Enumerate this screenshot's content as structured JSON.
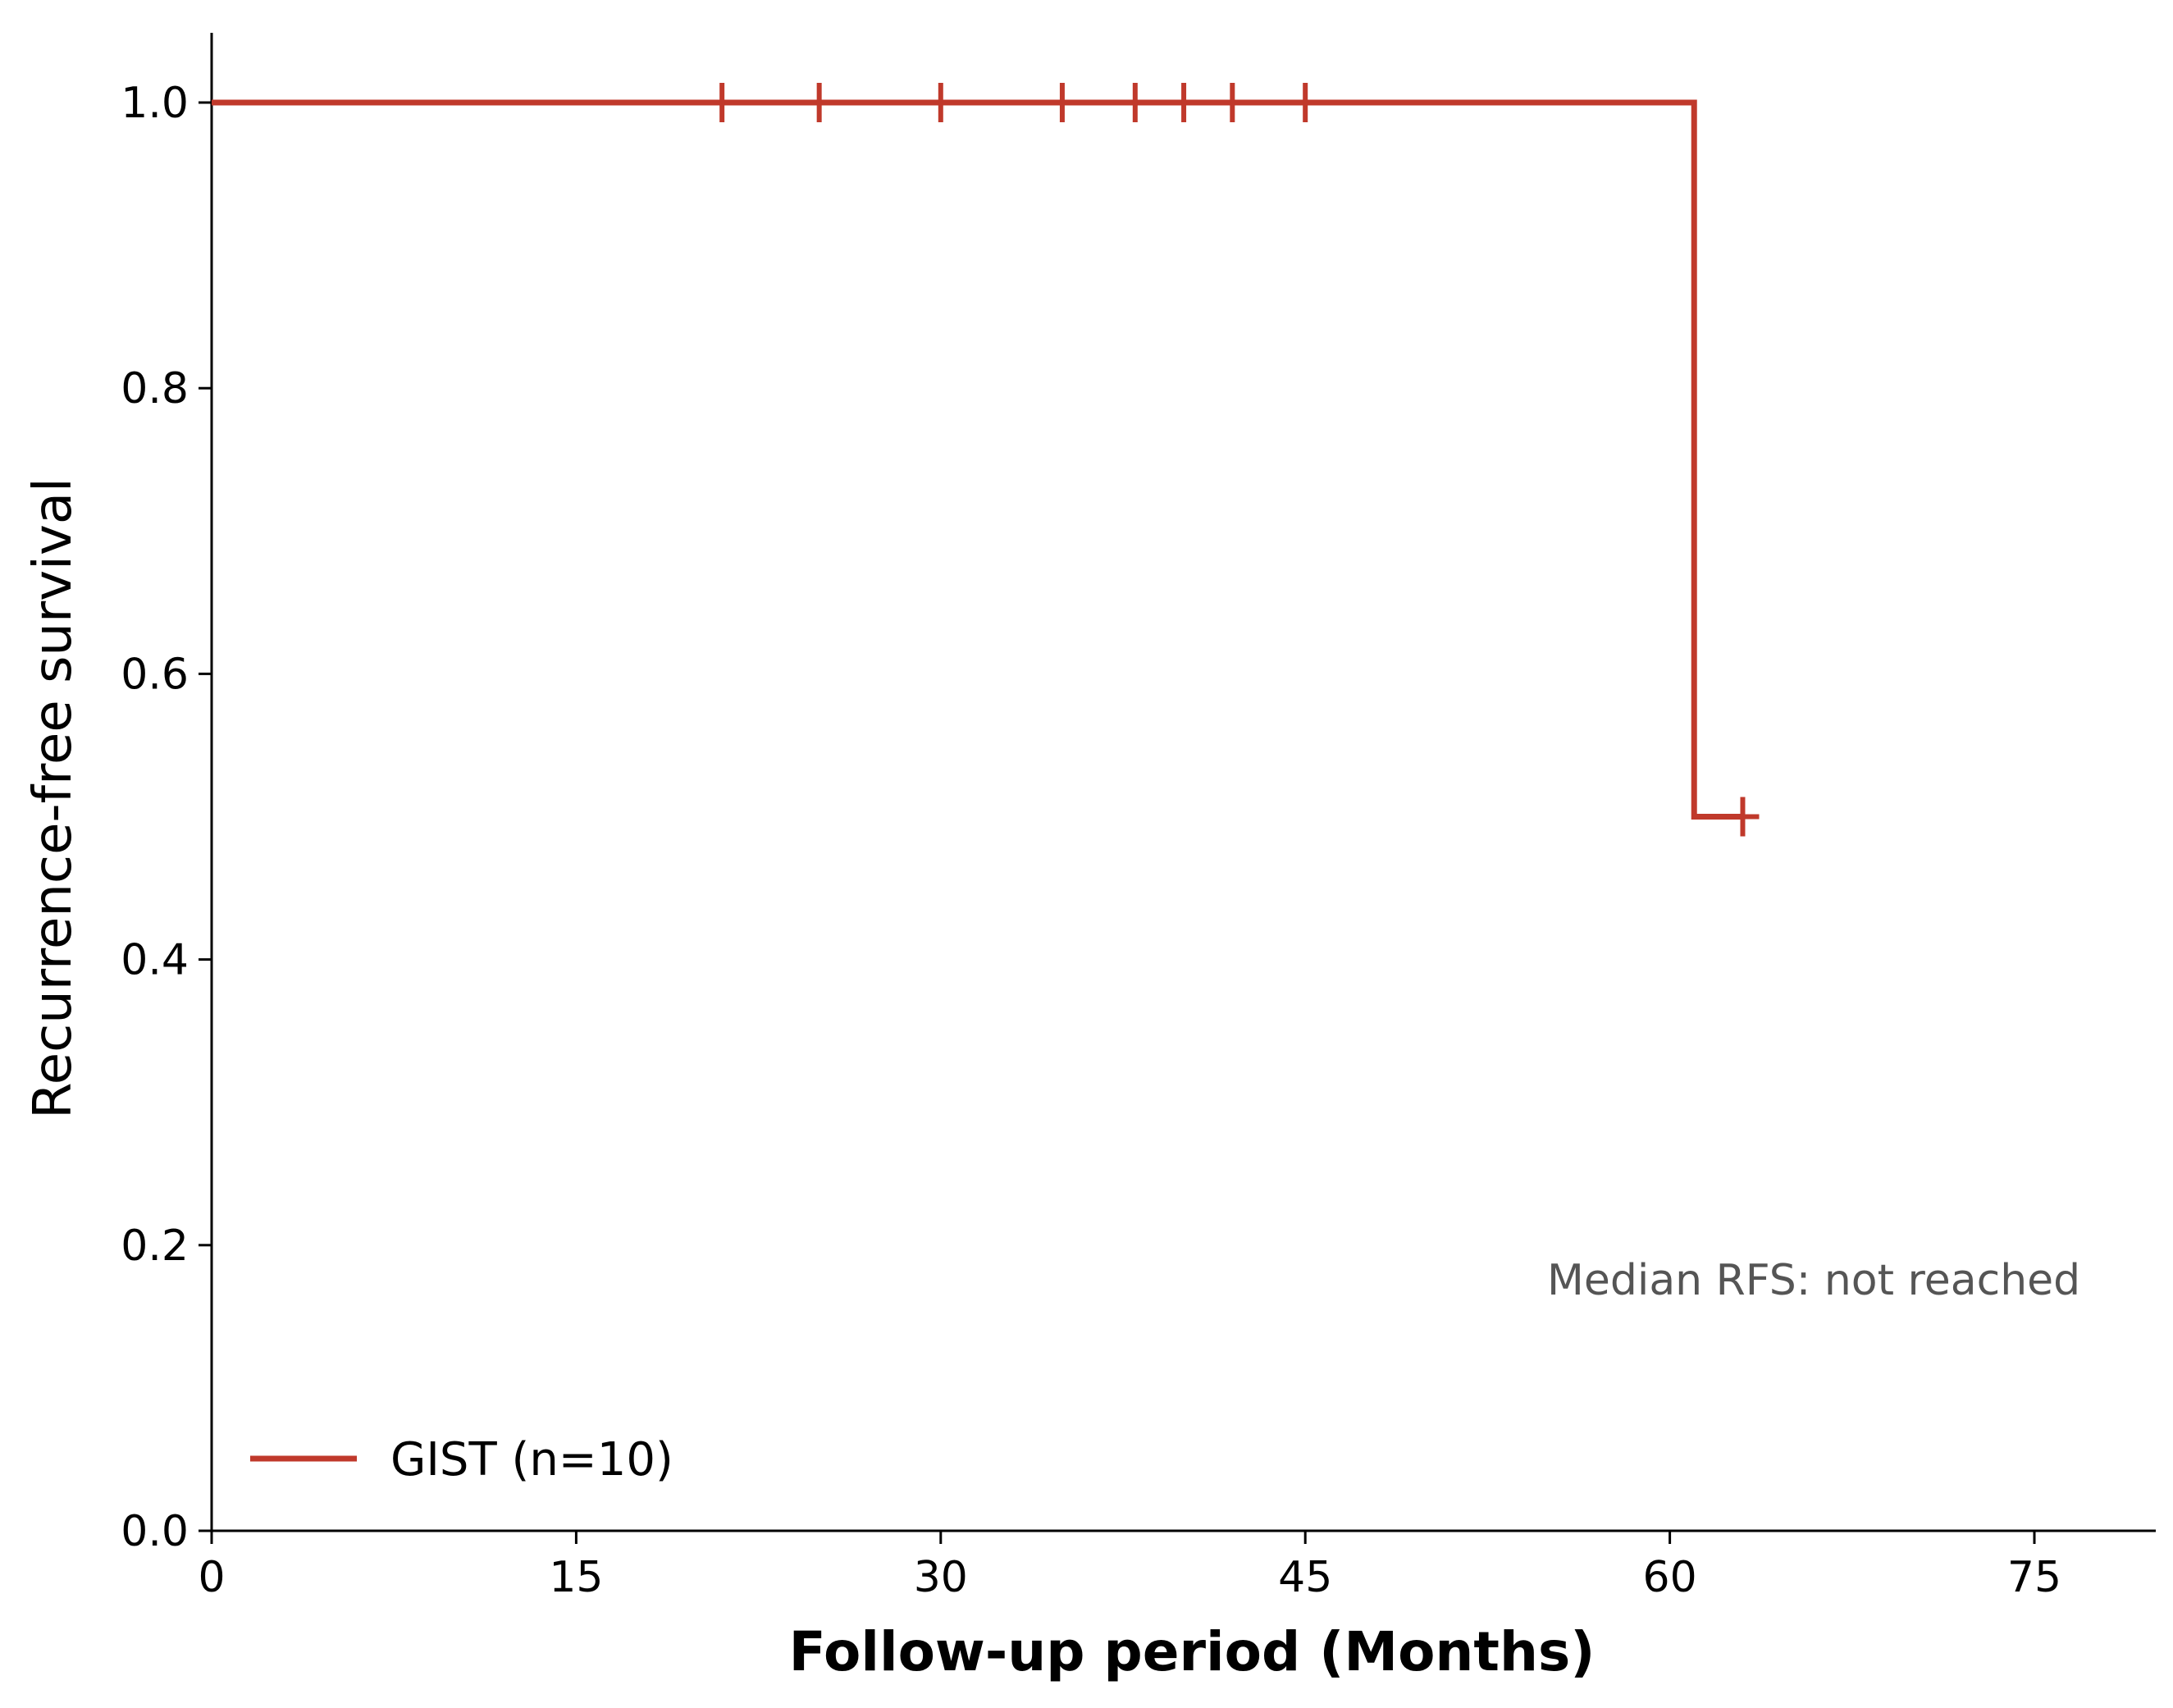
{
  "chart_data": {
    "type": "line",
    "title": "",
    "xlabel": "Follow-up period (Months)",
    "ylabel": "Recurrence-free survival",
    "xlim": [
      0,
      80
    ],
    "ylim": [
      0,
      1.05
    ],
    "x_ticks": [
      0,
      15,
      30,
      45,
      60,
      75
    ],
    "x_tick_labels": [
      "0",
      "15",
      "30",
      "45",
      "60",
      "75"
    ],
    "y_ticks": [
      0.0,
      0.2,
      0.4,
      0.6,
      0.8,
      1.0
    ],
    "y_tick_labels": [
      "0.0",
      "0.2",
      "0.4",
      "0.6",
      "0.8",
      "1.0"
    ],
    "grid": false,
    "legend_position": "bottom-left",
    "series": [
      {
        "name": "GIST (n=10)",
        "color": "#c0392b",
        "step": [
          {
            "x": 0,
            "y": 1.0
          },
          {
            "x": 61,
            "y": 1.0
          },
          {
            "x": 61,
            "y": 0.5
          },
          {
            "x": 63,
            "y": 0.5
          }
        ],
        "censored": [
          {
            "x": 21,
            "y": 1.0
          },
          {
            "x": 25,
            "y": 1.0
          },
          {
            "x": 30,
            "y": 1.0
          },
          {
            "x": 35,
            "y": 1.0
          },
          {
            "x": 38,
            "y": 1.0
          },
          {
            "x": 40,
            "y": 1.0
          },
          {
            "x": 42,
            "y": 1.0
          },
          {
            "x": 45,
            "y": 1.0
          },
          {
            "x": 63,
            "y": 0.5
          }
        ]
      }
    ],
    "annotations": [
      {
        "text": "Median RFS: not reached",
        "x": 55,
        "y": 0.175
      }
    ]
  }
}
